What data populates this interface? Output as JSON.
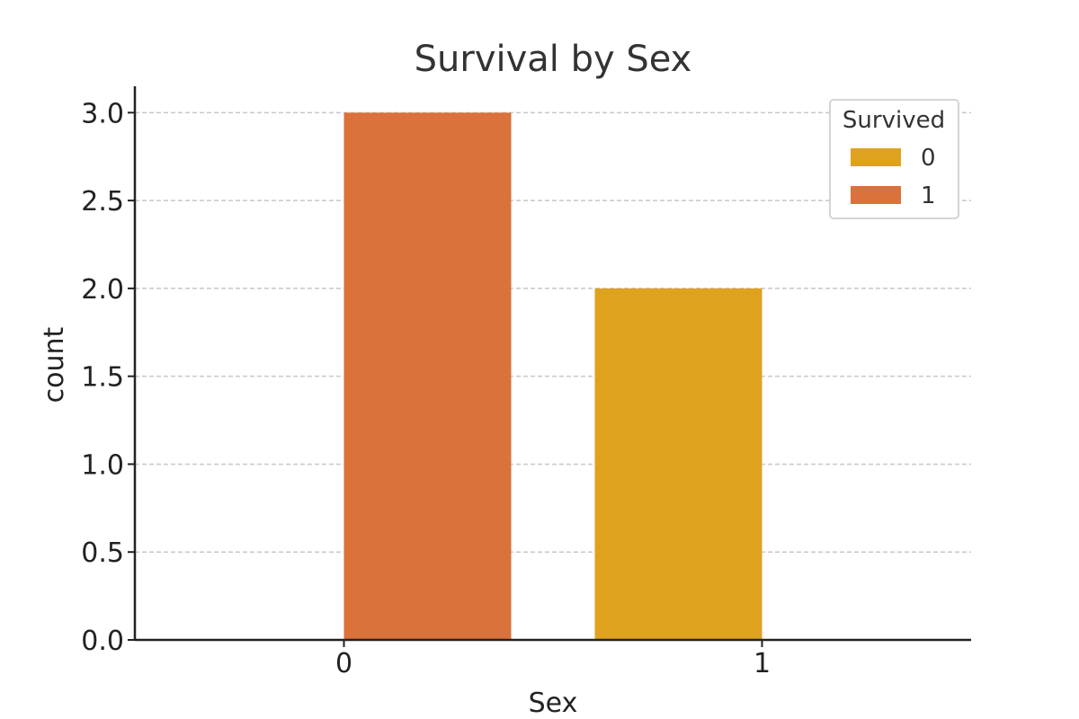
{
  "chart_data": {
    "type": "bar",
    "title": "Survival by Sex",
    "xlabel": "Sex",
    "ylabel": "count",
    "categories": [
      "0",
      "1"
    ],
    "series": [
      {
        "name": "0",
        "values": [
          0,
          2
        ]
      },
      {
        "name": "1",
        "values": [
          3,
          0
        ]
      }
    ],
    "ylim": [
      0,
      3.15
    ],
    "yticks": [
      "0.0",
      "0.5",
      "1.0",
      "1.5",
      "2.0",
      "2.5",
      "3.0"
    ],
    "grid": true,
    "legend": {
      "title": "Survived",
      "placement": "top-right",
      "entries": [
        "0",
        "1"
      ]
    }
  },
  "colors": {
    "series_0": "#dfa21f",
    "series_1": "#db713b",
    "axis": "#222222",
    "grid": "#c8c8c8",
    "legend_border": "#d4d4d4"
  }
}
